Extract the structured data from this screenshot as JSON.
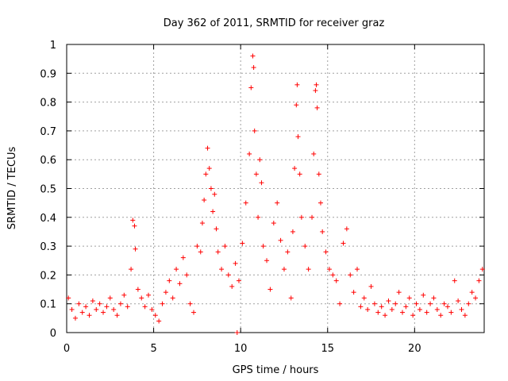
{
  "chart_data": {
    "type": "scatter",
    "title": "Day 362 of 2011, SRMTID for receiver graz",
    "xlabel": "GPS time / hours",
    "ylabel": "SRMTID / TECUs",
    "xlim": [
      0,
      24
    ],
    "ylim": [
      0,
      1
    ],
    "xticks": [
      "0",
      "5",
      "10",
      "15",
      "20"
    ],
    "yticks": [
      "0",
      "0.1",
      "0.2",
      "0.3",
      "0.4",
      "0.5",
      "0.6",
      "0.7",
      "0.8",
      "0.9",
      "1"
    ],
    "grid": true,
    "marker": "+",
    "color": "#ff0000",
    "points": [
      [
        0.1,
        0.12
      ],
      [
        0.3,
        0.08
      ],
      [
        0.5,
        0.05
      ],
      [
        0.7,
        0.1
      ],
      [
        0.9,
        0.07
      ],
      [
        1.1,
        0.09
      ],
      [
        1.3,
        0.06
      ],
      [
        1.5,
        0.11
      ],
      [
        1.7,
        0.08
      ],
      [
        1.9,
        0.1
      ],
      [
        2.1,
        0.07
      ],
      [
        2.3,
        0.09
      ],
      [
        2.5,
        0.12
      ],
      [
        2.7,
        0.08
      ],
      [
        2.9,
        0.06
      ],
      [
        3.1,
        0.1
      ],
      [
        3.3,
        0.13
      ],
      [
        3.5,
        0.09
      ],
      [
        3.7,
        0.22
      ],
      [
        3.8,
        0.39
      ],
      [
        3.9,
        0.37
      ],
      [
        3.95,
        0.29
      ],
      [
        4.1,
        0.15
      ],
      [
        4.3,
        0.12
      ],
      [
        4.5,
        0.09
      ],
      [
        4.7,
        0.13
      ],
      [
        4.9,
        0.08
      ],
      [
        5.1,
        0.06
      ],
      [
        5.3,
        0.04
      ],
      [
        5.5,
        0.1
      ],
      [
        5.7,
        0.14
      ],
      [
        5.9,
        0.18
      ],
      [
        6.1,
        0.12
      ],
      [
        6.3,
        0.22
      ],
      [
        6.5,
        0.17
      ],
      [
        6.7,
        0.26
      ],
      [
        6.9,
        0.2
      ],
      [
        7.1,
        0.1
      ],
      [
        7.3,
        0.07
      ],
      [
        7.5,
        0.3
      ],
      [
        7.7,
        0.28
      ],
      [
        7.8,
        0.38
      ],
      [
        7.9,
        0.46
      ],
      [
        8.0,
        0.55
      ],
      [
        8.1,
        0.64
      ],
      [
        8.2,
        0.57
      ],
      [
        8.3,
        0.5
      ],
      [
        8.4,
        0.42
      ],
      [
        8.5,
        0.48
      ],
      [
        8.6,
        0.36
      ],
      [
        8.7,
        0.28
      ],
      [
        8.9,
        0.22
      ],
      [
        9.1,
        0.3
      ],
      [
        9.3,
        0.2
      ],
      [
        9.5,
        0.16
      ],
      [
        9.7,
        0.24
      ],
      [
        9.8,
        0.0
      ],
      [
        9.9,
        0.18
      ],
      [
        10.1,
        0.31
      ],
      [
        10.3,
        0.45
      ],
      [
        10.5,
        0.62
      ],
      [
        10.6,
        0.85
      ],
      [
        10.7,
        0.96
      ],
      [
        10.75,
        0.92
      ],
      [
        10.8,
        0.7
      ],
      [
        10.9,
        0.55
      ],
      [
        11.0,
        0.4
      ],
      [
        11.1,
        0.6
      ],
      [
        11.2,
        0.52
      ],
      [
        11.3,
        0.3
      ],
      [
        11.5,
        0.25
      ],
      [
        11.7,
        0.15
      ],
      [
        11.9,
        0.38
      ],
      [
        12.1,
        0.45
      ],
      [
        12.3,
        0.32
      ],
      [
        12.5,
        0.22
      ],
      [
        12.7,
        0.28
      ],
      [
        12.9,
        0.12
      ],
      [
        13.0,
        0.35
      ],
      [
        13.1,
        0.57
      ],
      [
        13.2,
        0.79
      ],
      [
        13.25,
        0.86
      ],
      [
        13.3,
        0.68
      ],
      [
        13.4,
        0.55
      ],
      [
        13.5,
        0.4
      ],
      [
        13.7,
        0.3
      ],
      [
        13.9,
        0.22
      ],
      [
        14.1,
        0.4
      ],
      [
        14.2,
        0.62
      ],
      [
        14.3,
        0.84
      ],
      [
        14.35,
        0.86
      ],
      [
        14.4,
        0.78
      ],
      [
        14.5,
        0.55
      ],
      [
        14.6,
        0.45
      ],
      [
        14.7,
        0.35
      ],
      [
        14.9,
        0.28
      ],
      [
        15.1,
        0.22
      ],
      [
        15.3,
        0.2
      ],
      [
        15.5,
        0.18
      ],
      [
        15.7,
        0.1
      ],
      [
        15.9,
        0.31
      ],
      [
        16.1,
        0.36
      ],
      [
        16.3,
        0.2
      ],
      [
        16.5,
        0.14
      ],
      [
        16.7,
        0.22
      ],
      [
        16.9,
        0.09
      ],
      [
        17.1,
        0.12
      ],
      [
        17.3,
        0.08
      ],
      [
        17.5,
        0.16
      ],
      [
        17.7,
        0.1
      ],
      [
        17.9,
        0.07
      ],
      [
        18.1,
        0.09
      ],
      [
        18.3,
        0.06
      ],
      [
        18.5,
        0.11
      ],
      [
        18.7,
        0.08
      ],
      [
        18.9,
        0.1
      ],
      [
        19.1,
        0.14
      ],
      [
        19.3,
        0.07
      ],
      [
        19.5,
        0.09
      ],
      [
        19.7,
        0.12
      ],
      [
        19.9,
        0.06
      ],
      [
        20.1,
        0.1
      ],
      [
        20.3,
        0.08
      ],
      [
        20.5,
        0.13
      ],
      [
        20.7,
        0.07
      ],
      [
        20.9,
        0.1
      ],
      [
        21.1,
        0.12
      ],
      [
        21.3,
        0.08
      ],
      [
        21.5,
        0.06
      ],
      [
        21.7,
        0.1
      ],
      [
        21.9,
        0.09
      ],
      [
        22.1,
        0.07
      ],
      [
        22.3,
        0.18
      ],
      [
        22.5,
        0.11
      ],
      [
        22.7,
        0.08
      ],
      [
        22.9,
        0.06
      ],
      [
        23.1,
        0.1
      ],
      [
        23.3,
        0.14
      ],
      [
        23.5,
        0.12
      ],
      [
        23.7,
        0.18
      ],
      [
        23.9,
        0.22
      ]
    ]
  }
}
